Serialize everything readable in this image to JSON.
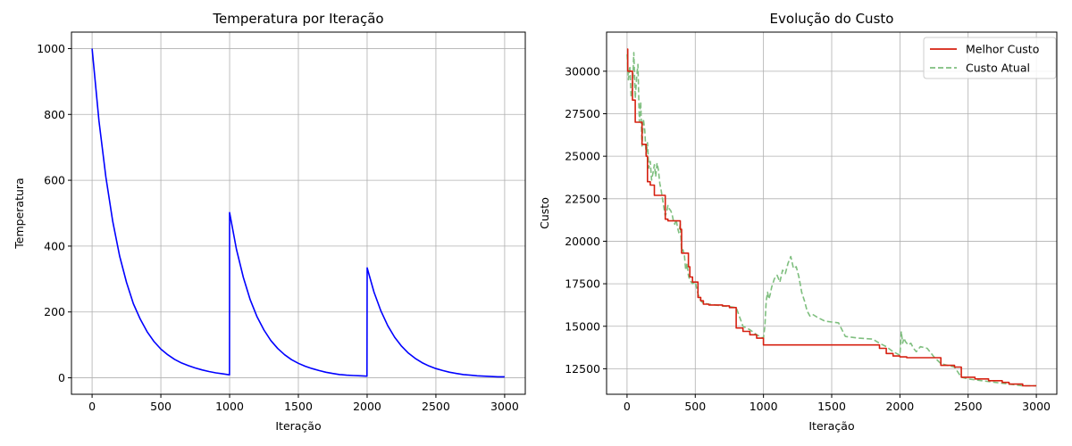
{
  "chart_data": [
    {
      "type": "line",
      "title": "Temperatura por Iteração",
      "xlabel": "Iteração",
      "ylabel": "Temperatura",
      "xlim": [
        -150,
        3150
      ],
      "ylim": [
        -50,
        1050
      ],
      "xticks": [
        0,
        500,
        1000,
        1500,
        2000,
        2500,
        3000
      ],
      "yticks": [
        0,
        200,
        400,
        600,
        800,
        1000
      ],
      "grid": true,
      "colors": {
        "line": "#0000ff"
      },
      "series": [
        {
          "x": [
            0,
            50,
            100,
            150,
            200,
            250,
            300,
            350,
            400,
            450,
            500,
            550,
            600,
            650,
            700,
            750,
            800,
            850,
            900,
            950,
            999,
            1000,
            1050,
            1100,
            1150,
            1200,
            1250,
            1300,
            1350,
            1400,
            1450,
            1500,
            1550,
            1600,
            1650,
            1700,
            1750,
            1800,
            1850,
            1900,
            1950,
            1999,
            2000,
            2050,
            2100,
            2150,
            2200,
            2250,
            2300,
            2350,
            2400,
            2450,
            2500,
            2550,
            2600,
            2650,
            2700,
            2750,
            2800,
            2850,
            2900,
            2950,
            3000
          ],
          "y": [
            1000,
            780,
            610,
            475,
            370,
            290,
            225,
            178,
            140,
            110,
            87,
            70,
            56,
            45,
            37,
            30,
            24,
            19,
            15,
            12,
            9,
            502,
            390,
            305,
            237,
            185,
            145,
            113,
            89,
            70,
            55,
            44,
            35,
            28,
            22,
            17,
            13,
            10,
            8,
            7,
            6,
            5,
            334,
            260,
            203,
            158,
            123,
            96,
            75,
            59,
            46,
            36,
            28,
            22,
            17,
            13,
            10,
            8,
            6,
            5,
            4,
            3,
            3
          ]
        }
      ]
    },
    {
      "type": "line",
      "title": "Evolução do Custo",
      "xlabel": "Iteração",
      "ylabel": "Custo",
      "xlim": [
        -150,
        3150
      ],
      "ylim": [
        11000,
        32300
      ],
      "xticks": [
        0,
        500,
        1000,
        1500,
        2000,
        2500,
        3000
      ],
      "yticks": [
        12500,
        15000,
        17500,
        20000,
        22500,
        25000,
        27500,
        30000
      ],
      "grid": true,
      "legend": "top-right",
      "series": [
        {
          "name": "Melhor Custo",
          "style": "solid",
          "color": "#d62010",
          "x": [
            0,
            5,
            5,
            40,
            40,
            60,
            60,
            110,
            110,
            140,
            140,
            150,
            150,
            170,
            170,
            200,
            200,
            280,
            280,
            300,
            300,
            390,
            390,
            400,
            400,
            450,
            450,
            460,
            460,
            480,
            480,
            520,
            520,
            540,
            540,
            560,
            560,
            600,
            600,
            700,
            700,
            750,
            750,
            800,
            800,
            850,
            850,
            900,
            900,
            950,
            950,
            1000,
            1000,
            1850,
            1850,
            1900,
            1900,
            1950,
            1950,
            2000,
            2000,
            2050,
            2050,
            2300,
            2300,
            2400,
            2400,
            2450,
            2450,
            2550,
            2550,
            2650,
            2650,
            2750,
            2750,
            2800,
            2800,
            2900,
            2900,
            3000
          ],
          "y": [
            31300,
            31300,
            30000,
            30000,
            28300,
            28300,
            27000,
            27000,
            25700,
            25700,
            25000,
            25000,
            23500,
            23500,
            23300,
            23300,
            22700,
            22700,
            21300,
            21300,
            21200,
            21200,
            20700,
            20700,
            19300,
            19300,
            18500,
            18500,
            17900,
            17900,
            17600,
            17600,
            16700,
            16700,
            16500,
            16500,
            16300,
            16300,
            16250,
            16250,
            16200,
            16200,
            16100,
            16100,
            14900,
            14900,
            14700,
            14700,
            14500,
            14500,
            14300,
            14300,
            13900,
            13900,
            13700,
            13700,
            13400,
            13400,
            13250,
            13250,
            13200,
            13200,
            13150,
            13150,
            12700,
            12700,
            12600,
            12600,
            12000,
            12000,
            11900,
            11900,
            11800,
            11800,
            11700,
            11700,
            11600,
            11600,
            11500,
            11500
          ]
        },
        {
          "name": "Custo Atual",
          "style": "dashed",
          "color": "#7fbf7f",
          "x": [
            0,
            10,
            20,
            30,
            40,
            50,
            60,
            70,
            80,
            90,
            100,
            110,
            120,
            130,
            140,
            150,
            160,
            170,
            180,
            190,
            200,
            210,
            220,
            230,
            240,
            250,
            260,
            270,
            280,
            290,
            300,
            310,
            320,
            330,
            340,
            350,
            360,
            370,
            380,
            390,
            400,
            410,
            420,
            430,
            440,
            450,
            460,
            480,
            500,
            520,
            540,
            560,
            600,
            700,
            750,
            800,
            850,
            900,
            950,
            1000,
            1010,
            1020,
            1030,
            1040,
            1050,
            1060,
            1080,
            1100,
            1120,
            1140,
            1160,
            1180,
            1200,
            1220,
            1240,
            1260,
            1280,
            1300,
            1320,
            1340,
            1360,
            1400,
            1450,
            1500,
            1550,
            1600,
            1700,
            1800,
            1850,
            1900,
            1950,
            2000,
            2010,
            2020,
            2030,
            2040,
            2060,
            2080,
            2100,
            2120,
            2150,
            2200,
            2250,
            2300,
            2350,
            2400,
            2450,
            2500,
            2600,
            2700,
            2800,
            2900,
            3000
          ],
          "y": [
            31000,
            29500,
            30300,
            28500,
            29000,
            31100,
            28400,
            29600,
            30400,
            27000,
            28200,
            25600,
            27200,
            26500,
            25000,
            25800,
            24300,
            24700,
            23600,
            24000,
            24500,
            23800,
            24600,
            24200,
            23400,
            23000,
            22500,
            22000,
            21500,
            21700,
            22100,
            21900,
            21800,
            21600,
            21200,
            21000,
            21300,
            20800,
            20500,
            21000,
            19400,
            19500,
            19200,
            18300,
            18700,
            18000,
            17700,
            17500,
            17600,
            16900,
            16500,
            16350,
            16300,
            16200,
            16150,
            16100,
            15000,
            14800,
            14500,
            14300,
            15000,
            16500,
            17000,
            16600,
            16900,
            17300,
            17800,
            18000,
            17600,
            18300,
            18100,
            18700,
            19100,
            18400,
            18500,
            17900,
            17000,
            16500,
            15900,
            15600,
            15700,
            15500,
            15300,
            15250,
            15200,
            14400,
            14300,
            14250,
            14000,
            13800,
            13500,
            13300,
            14700,
            14000,
            14300,
            14100,
            13900,
            14000,
            13700,
            13500,
            13800,
            13700,
            13200,
            12800,
            12700,
            12600,
            12000,
            11900,
            11800,
            11700,
            11600,
            11500,
            11500
          ]
        }
      ]
    }
  ]
}
